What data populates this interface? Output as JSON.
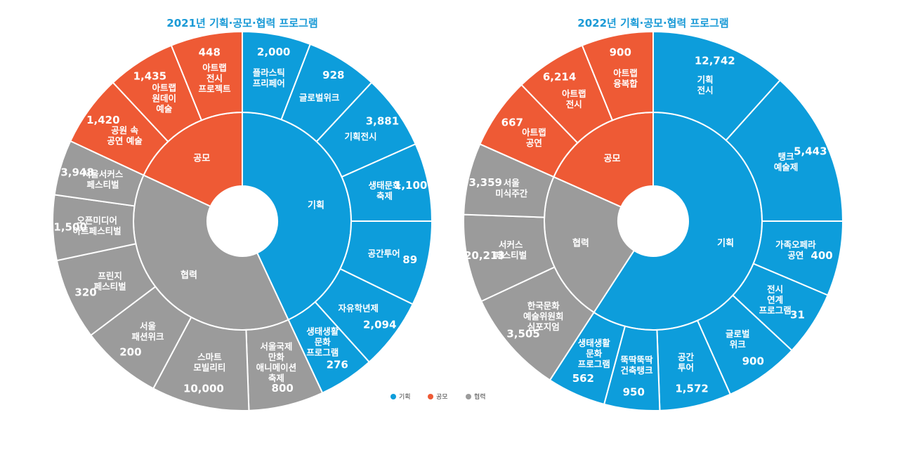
{
  "colors": {
    "기획": "#0d9ddb",
    "공모": "#ee5a35",
    "협력": "#9b9b9b"
  },
  "legend": [
    {
      "key": "기획",
      "label": "기획"
    },
    {
      "key": "공모",
      "label": "공모"
    },
    {
      "key": "협력",
      "label": "협력"
    }
  ],
  "chart_data": [
    {
      "type": "sunburst",
      "title": "2021년 기획·공모·협력 프로그램",
      "categories": [
        {
          "key": "기획",
          "label": "기획",
          "programs": [
            {
              "lines": [
                "플라스틱",
                "프리페어"
              ],
              "value": 2000,
              "value_label": "2,000"
            },
            {
              "lines": [
                "글로벌위크"
              ],
              "value": 928,
              "value_label": "928"
            },
            {
              "lines": [
                "기획전시"
              ],
              "value": 3881,
              "value_label": "3,881"
            },
            {
              "lines": [
                "생태문화",
                "축제"
              ],
              "value": 1100,
              "value_label": "1,100"
            },
            {
              "lines": [
                "공간투어"
              ],
              "value": 89,
              "value_label": "89"
            },
            {
              "lines": [
                "자유학년제"
              ],
              "value": 2094,
              "value_label": "2,094"
            },
            {
              "lines": [
                "생태생활",
                "문화",
                "프로그램"
              ],
              "value": 276,
              "value_label": "276"
            }
          ]
        },
        {
          "key": "협력",
          "label": "협력",
          "programs": [
            {
              "lines": [
                "서울국제",
                "만화",
                "애니메이션",
                "축제"
              ],
              "value": 800,
              "value_label": "800"
            },
            {
              "lines": [
                "스마트",
                "모빌리티"
              ],
              "value": 10000,
              "value_label": "10,000"
            },
            {
              "lines": [
                "서울",
                "패션위크"
              ],
              "value": 200,
              "value_label": "200"
            },
            {
              "lines": [
                "프린지",
                "페스티벌"
              ],
              "value": 320,
              "value_label": "320"
            },
            {
              "lines": [
                "오픈미디어",
                "아트페스티벌"
              ],
              "value": 1500,
              "value_label": "1,500"
            },
            {
              "lines": [
                "서울서커스",
                "페스티벌"
              ],
              "value": 3948,
              "value_label": "3,948"
            }
          ]
        },
        {
          "key": "공모",
          "label": "공모",
          "programs": [
            {
              "lines": [
                "공원 속",
                "공연 예술"
              ],
              "value": 1420,
              "value_label": "1,420"
            },
            {
              "lines": [
                "아트랩",
                "원데이",
                "예술"
              ],
              "value": 1435,
              "value_label": "1,435"
            },
            {
              "lines": [
                "아트랩",
                "전시",
                "프로젝트"
              ],
              "value": 448,
              "value_label": "448"
            }
          ]
        }
      ]
    },
    {
      "type": "sunburst",
      "title": "2022년 기획·공모·협력 프로그램",
      "categories": [
        {
          "key": "기획",
          "label": "기획",
          "programs": [
            {
              "lines": [
                "기획",
                "전시"
              ],
              "value": 12742,
              "value_label": "12,742"
            },
            {
              "lines": [
                "탱크",
                "예술제"
              ],
              "value": 5443,
              "value_label": "5,443"
            },
            {
              "lines": [
                "가족오페라",
                "공연"
              ],
              "value": 400,
              "value_label": "400"
            },
            {
              "lines": [
                "전시",
                "연계",
                "프로그램"
              ],
              "value": 31,
              "value_label": "31"
            },
            {
              "lines": [
                "글로벌",
                "위크"
              ],
              "value": 900,
              "value_label": "900"
            },
            {
              "lines": [
                "공간",
                "투어"
              ],
              "value": 1572,
              "value_label": "1,572"
            },
            {
              "lines": [
                "뚝딱뚝딱",
                "건축탱크"
              ],
              "value": 950,
              "value_label": "950"
            },
            {
              "lines": [
                "생태생활",
                "문화",
                "프로그램"
              ],
              "value": 562,
              "value_label": "562"
            }
          ]
        },
        {
          "key": "협력",
          "label": "협력",
          "programs": [
            {
              "lines": [
                "한국문화",
                "예술위원회",
                "심포지엄"
              ],
              "value": 3505,
              "value_label": "3,505"
            },
            {
              "lines": [
                "서커스",
                "페스티벌"
              ],
              "value": 20213,
              "value_label": "20,213"
            },
            {
              "lines": [
                "서울",
                "미식주간"
              ],
              "value": 3359,
              "value_label": "3,359"
            }
          ]
        },
        {
          "key": "공모",
          "label": "공모",
          "programs": [
            {
              "lines": [
                "아트랩",
                "공연"
              ],
              "value": 667,
              "value_label": "667"
            },
            {
              "lines": [
                "아트랩",
                "전시"
              ],
              "value": 6214,
              "value_label": "6,214"
            },
            {
              "lines": [
                "아트랩",
                "융복합"
              ],
              "value": 900,
              "value_label": "900"
            }
          ]
        }
      ]
    }
  ]
}
